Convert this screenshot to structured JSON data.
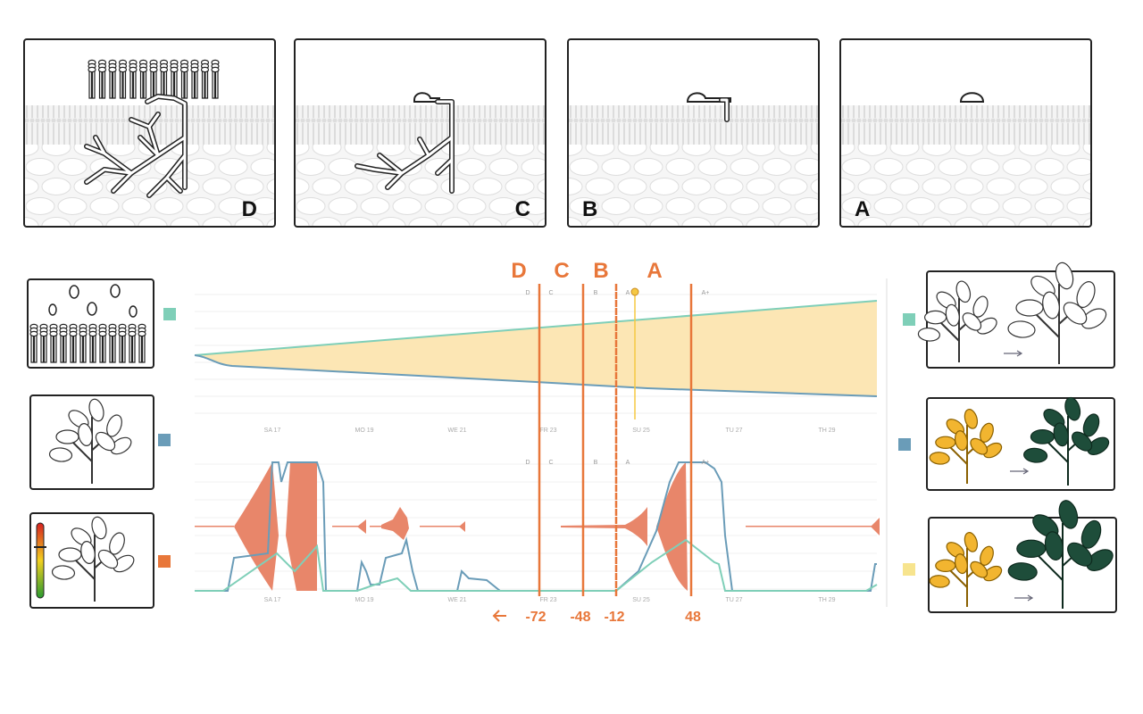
{
  "panels": [
    {
      "label": "D"
    },
    {
      "label": "C"
    },
    {
      "label": "B"
    },
    {
      "label": "A"
    }
  ],
  "markers": [
    {
      "letter": "D",
      "hours": "-72"
    },
    {
      "letter": "C",
      "hours": "-48"
    },
    {
      "letter": "B",
      "hours": "-12"
    },
    {
      "letter": "A",
      "hours": "48"
    }
  ],
  "timeline": {
    "phase_labels": [
      "D",
      "C",
      "B",
      "A",
      "A+"
    ],
    "days": [
      "SA 17",
      "MO 19",
      "WE 21",
      "FR 23",
      "SU 25",
      "TU 27",
      "TH 29"
    ]
  }
}
